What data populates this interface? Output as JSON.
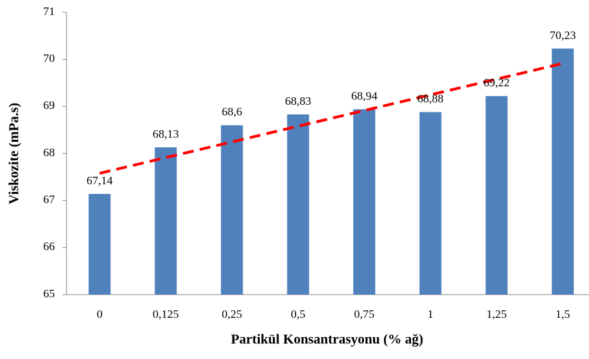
{
  "chart_data": {
    "type": "bar",
    "x_label": "Partikül Konsantrasyonu (% ağ)",
    "y_label": "Viskozite (mPa.s)",
    "categories": [
      "0",
      "0,125",
      "0,25",
      "0,5",
      "0,75",
      "1",
      "1,25",
      "1,5"
    ],
    "values": [
      67.14,
      68.13,
      68.6,
      68.83,
      68.94,
      68.88,
      69.22,
      70.23
    ],
    "value_labels": [
      "67,14",
      "68,13",
      "68,6",
      "68,83",
      "68,94",
      "68,88",
      "69,22",
      "70,23"
    ],
    "color": "#4f81bd",
    "trendline": "linear",
    "trendline_color": "#ff0000",
    "ylim": [
      65,
      71
    ],
    "yticks": [
      65,
      66,
      67,
      68,
      69,
      70,
      71
    ],
    "grid": false
  }
}
